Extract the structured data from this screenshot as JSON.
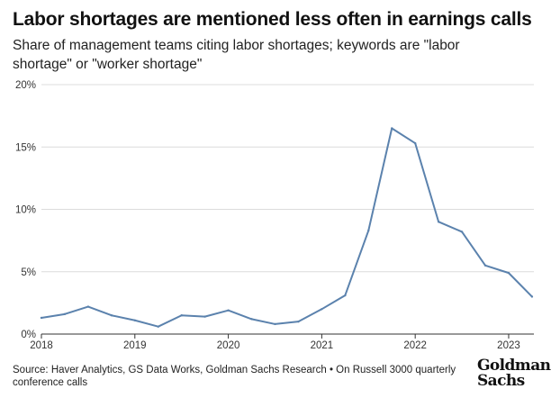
{
  "title": "Labor shortages are mentioned less often in earnings calls",
  "subtitle": "Share of management teams citing labor shortages; keywords are \"labor shortage\" or \"worker shortage\"",
  "source": "Source: Haver Analytics, GS Data Works, Goldman Sachs Research • On Russell 3000 quarterly conference calls",
  "logo": {
    "line1": "Goldman",
    "line2": "Sachs"
  },
  "colors": {
    "line": "#5b82ad",
    "grid": "#dcdcdc",
    "axis": "#333333",
    "text": "#222222"
  },
  "chart_data": {
    "type": "line",
    "title": "Labor shortages are mentioned less often in earnings calls",
    "subtitle": "Share of management teams citing labor shortages; keywords are \"labor shortage\" or \"worker shortage\"",
    "xlabel": "",
    "ylabel": "",
    "xlim": [
      2018.0,
      2023.27
    ],
    "ylim": [
      0,
      20
    ],
    "y_unit": "%",
    "y_ticks": [
      0,
      5,
      10,
      15,
      20
    ],
    "y_tick_labels": [
      "0%",
      "5%",
      "10%",
      "15%",
      "20%"
    ],
    "x_ticks": [
      2018,
      2019,
      2020,
      2021,
      2022,
      2023
    ],
    "x_tick_labels": [
      "2018",
      "2019",
      "2020",
      "2021",
      "2022",
      "2023"
    ],
    "grid": "horizontal",
    "legend": "none",
    "series": [
      {
        "x": [
          2018.0,
          2018.25,
          2018.5,
          2018.75,
          2019.0,
          2019.25,
          2019.5,
          2019.75,
          2020.0,
          2020.25,
          2020.5,
          2020.75,
          2021.0,
          2021.25,
          2021.5,
          2021.75,
          2022.0,
          2022.25,
          2022.5,
          2022.75,
          2023.0,
          2023.25
        ],
        "values": [
          1.3,
          1.6,
          2.2,
          1.5,
          1.1,
          0.6,
          1.5,
          1.4,
          1.9,
          1.2,
          0.8,
          1.0,
          2.0,
          3.1,
          8.3,
          16.5,
          15.3,
          9.0,
          8.2,
          5.5,
          4.9,
          3.0
        ]
      }
    ]
  }
}
